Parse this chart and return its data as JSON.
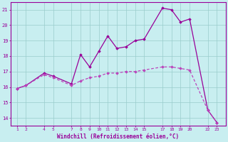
{
  "xlabel": "Windchill (Refroidissement éolien,°C)",
  "background_color": "#c8eef0",
  "grid_color": "#99cccc",
  "line_color": "#990099",
  "line_color2": "#bb44bb",
  "series1_x": [
    1,
    2,
    4,
    5,
    7,
    8,
    9,
    10,
    11,
    12,
    13,
    14,
    15,
    17,
    18,
    19,
    20,
    22,
    23
  ],
  "series1_y": [
    15.9,
    16.1,
    16.9,
    16.7,
    16.2,
    18.1,
    17.3,
    18.3,
    19.3,
    18.5,
    18.6,
    19.0,
    19.1,
    21.1,
    21.0,
    20.2,
    20.4,
    14.5,
    13.7
  ],
  "series2_x": [
    1,
    2,
    4,
    5,
    7,
    8,
    9,
    10,
    11,
    12,
    13,
    14,
    15,
    17,
    18,
    19,
    20,
    22,
    23
  ],
  "series2_y": [
    15.9,
    16.1,
    16.8,
    16.6,
    16.1,
    16.4,
    16.6,
    16.7,
    16.9,
    16.9,
    17.0,
    17.0,
    17.1,
    17.3,
    17.3,
    17.2,
    17.1,
    14.5,
    13.7
  ],
  "xticks": [
    1,
    2,
    4,
    5,
    7,
    8,
    9,
    10,
    11,
    12,
    13,
    14,
    15,
    17,
    18,
    19,
    20,
    22,
    23
  ],
  "xtick_labels": [
    "1",
    "2",
    "4",
    "5",
    "7",
    "8",
    "9",
    "10",
    "11",
    "12",
    "13",
    "14",
    "15",
    "17",
    "18",
    "19",
    "20",
    "22",
    "23"
  ],
  "yticks": [
    14,
    15,
    16,
    17,
    18,
    19,
    20,
    21
  ],
  "ytick_labels": [
    "14",
    "15",
    "16",
    "17",
    "18",
    "19",
    "20",
    "21"
  ],
  "ylim": [
    13.5,
    21.5
  ],
  "xlim": [
    0.3,
    24.0
  ]
}
